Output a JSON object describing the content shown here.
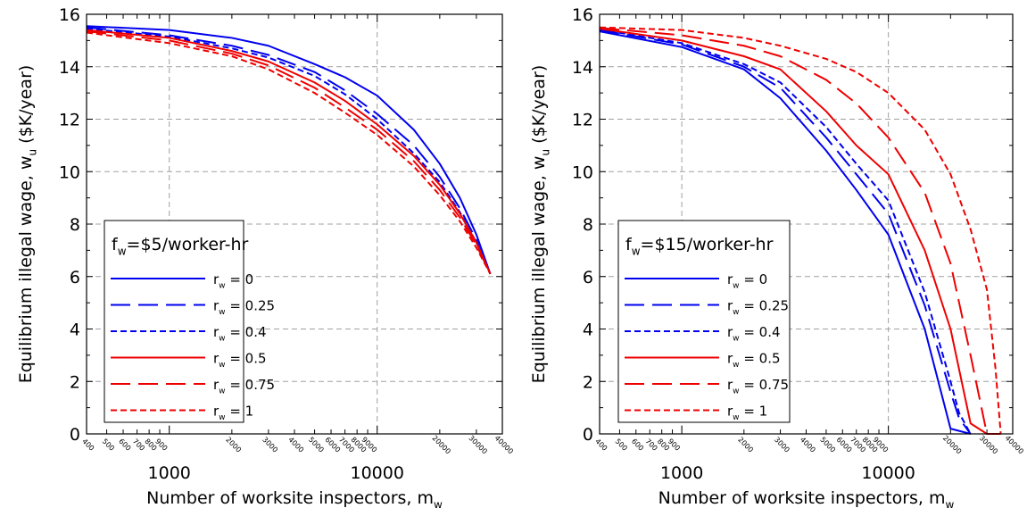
{
  "chart_data": [
    {
      "type": "line",
      "xscale": "log",
      "xlim": [
        400,
        40000
      ],
      "ylim": [
        0,
        16
      ],
      "ylabel": "Equilibrium illegal wage, w",
      "ylabel_sub": "u",
      "ylabel_unit": " ($K/year)",
      "xlabel": "Number of worksite inspectors, m",
      "xlabel_sub": "w",
      "yticks": [
        "0",
        "2",
        "4",
        "6",
        "8",
        "10",
        "12",
        "14",
        "16"
      ],
      "xticks_major": [
        "1000",
        "10000"
      ],
      "xticks_minor": [
        "400",
        "500",
        "600",
        "700",
        "800",
        "900",
        "2000",
        "3000",
        "4000",
        "5000",
        "6000",
        "7000",
        "8000",
        "9000",
        "20000",
        "30000",
        "40000"
      ],
      "grid": true,
      "legend_position": "lower-left",
      "legend_title": "f",
      "legend_title_sub": "w",
      "legend_title_rest": "=$5/worker-hr",
      "series": [
        {
          "name": "r",
          "name_sub": "w",
          "name_rest": " = 0",
          "color": "#0000ee",
          "dash": "solid",
          "x": [
            400,
            1000,
            2000,
            3000,
            5000,
            7000,
            10000,
            15000,
            20000,
            25000,
            30000,
            35000
          ],
          "y": [
            15.55,
            15.4,
            15.1,
            14.8,
            14.1,
            13.6,
            12.9,
            11.6,
            10.3,
            9.0,
            7.6,
            6.1
          ]
        },
        {
          "name": "r",
          "name_sub": "w",
          "name_rest": " = 0.25",
          "color": "#0000ee",
          "dash": "longdash",
          "x": [
            400,
            1000,
            2000,
            3000,
            5000,
            7000,
            10000,
            15000,
            20000,
            25000,
            30000,
            35000
          ],
          "y": [
            15.5,
            15.2,
            14.8,
            14.45,
            13.8,
            13.1,
            12.2,
            11.0,
            9.8,
            8.6,
            7.4,
            6.1
          ]
        },
        {
          "name": "r",
          "name_sub": "w",
          "name_rest": " = 0.4",
          "color": "#0000ee",
          "dash": "shortdash",
          "x": [
            400,
            1000,
            2000,
            3000,
            5000,
            7000,
            10000,
            15000,
            20000,
            25000,
            30000,
            35000
          ],
          "y": [
            15.45,
            15.15,
            14.7,
            14.35,
            13.65,
            12.95,
            12.0,
            10.7,
            9.6,
            8.45,
            7.3,
            6.1
          ]
        },
        {
          "name": "r",
          "name_sub": "w",
          "name_rest": " = 0.5",
          "color": "#ee0000",
          "dash": "solid",
          "x": [
            400,
            1000,
            2000,
            3000,
            5000,
            7000,
            10000,
            15000,
            20000,
            25000,
            30000,
            35000
          ],
          "y": [
            15.4,
            15.1,
            14.6,
            14.2,
            13.4,
            12.7,
            11.8,
            10.6,
            9.5,
            8.4,
            7.3,
            6.1
          ]
        },
        {
          "name": "r",
          "name_sub": "w",
          "name_rest": " = 0.75",
          "color": "#ee0000",
          "dash": "longdash",
          "x": [
            400,
            1000,
            2000,
            3000,
            5000,
            7000,
            10000,
            15000,
            20000,
            25000,
            30000,
            35000
          ],
          "y": [
            15.35,
            15.0,
            14.5,
            14.05,
            13.2,
            12.45,
            11.6,
            10.4,
            9.3,
            8.25,
            7.2,
            6.1
          ]
        },
        {
          "name": "r",
          "name_sub": "w",
          "name_rest": " = 1",
          "color": "#ee0000",
          "dash": "shortdash",
          "x": [
            400,
            1000,
            2000,
            3000,
            5000,
            7000,
            10000,
            15000,
            20000,
            25000,
            30000,
            35000
          ],
          "y": [
            15.3,
            14.9,
            14.4,
            13.9,
            13.0,
            12.25,
            11.4,
            10.2,
            9.1,
            8.1,
            7.1,
            6.1
          ]
        }
      ]
    },
    {
      "type": "line",
      "xscale": "log",
      "xlim": [
        400,
        40000
      ],
      "ylim": [
        0,
        16
      ],
      "ylabel": "Equilibrium illegal wage, w",
      "ylabel_sub": "u",
      "ylabel_unit": " ($K/year)",
      "xlabel": "Number of worksite inspectors, m",
      "xlabel_sub": "w",
      "yticks": [
        "0",
        "2",
        "4",
        "6",
        "8",
        "10",
        "12",
        "14",
        "16"
      ],
      "xticks_major": [
        "1000",
        "10000"
      ],
      "xticks_minor": [
        "400",
        "500",
        "600",
        "700",
        "800",
        "900",
        "2000",
        "3000",
        "4000",
        "5000",
        "6000",
        "7000",
        "8000",
        "9000",
        "20000",
        "30000",
        "40000"
      ],
      "grid": true,
      "legend_position": "lower-left",
      "legend_title": "f",
      "legend_title_sub": "w",
      "legend_title_rest": "=$15/worker-hr",
      "series": [
        {
          "name": "r",
          "name_sub": "w",
          "name_rest": " = 0",
          "color": "#0000ee",
          "dash": "solid",
          "x": [
            400,
            1000,
            2000,
            3000,
            5000,
            7000,
            10000,
            15000,
            20000,
            25000
          ],
          "y": [
            15.35,
            14.75,
            13.9,
            12.8,
            10.8,
            9.3,
            7.6,
            4.0,
            0.2,
            0.0
          ]
        },
        {
          "name": "r",
          "name_sub": "w",
          "name_rest": " = 0.25",
          "color": "#0000ee",
          "dash": "longdash",
          "x": [
            400,
            1000,
            2000,
            3000,
            5000,
            7000,
            10000,
            15000,
            20000,
            22000,
            25000
          ],
          "y": [
            15.4,
            14.85,
            14.0,
            13.2,
            11.3,
            9.9,
            8.4,
            4.9,
            1.6,
            0.6,
            0.0
          ]
        },
        {
          "name": "r",
          "name_sub": "w",
          "name_rest": " = 0.4",
          "color": "#0000ee",
          "dash": "shortdash",
          "x": [
            400,
            1000,
            2000,
            3000,
            5000,
            7000,
            10000,
            15000,
            20000,
            22000,
            25000
          ],
          "y": [
            15.42,
            14.9,
            14.1,
            13.4,
            11.7,
            10.3,
            8.9,
            5.4,
            2.0,
            0.8,
            0.0
          ]
        },
        {
          "name": "r",
          "name_sub": "w",
          "name_rest": " = 0.5",
          "color": "#ee0000",
          "dash": "solid",
          "x": [
            400,
            1000,
            2000,
            3000,
            5000,
            7000,
            10000,
            15000,
            20000,
            25000,
            30000,
            35000
          ],
          "y": [
            15.45,
            15.0,
            14.4,
            13.9,
            12.3,
            11.0,
            9.9,
            7.0,
            4.0,
            0.4,
            0.0,
            0.0
          ]
        },
        {
          "name": "r",
          "name_sub": "w",
          "name_rest": " = 0.75",
          "color": "#ee0000",
          "dash": "longdash",
          "x": [
            400,
            1000,
            2000,
            3000,
            5000,
            7000,
            10000,
            15000,
            20000,
            25000,
            30000
          ],
          "y": [
            15.48,
            15.2,
            14.8,
            14.4,
            13.5,
            12.6,
            11.3,
            9.2,
            6.5,
            3.0,
            0.0
          ]
        },
        {
          "name": "r",
          "name_sub": "w",
          "name_rest": " = 1",
          "color": "#ee0000",
          "dash": "shortdash",
          "x": [
            400,
            1000,
            2000,
            3000,
            5000,
            7000,
            10000,
            15000,
            20000,
            25000,
            30000,
            33000,
            35000
          ],
          "y": [
            15.5,
            15.4,
            15.1,
            14.8,
            14.3,
            13.8,
            13.0,
            11.6,
            9.9,
            7.8,
            5.5,
            2.5,
            0.0
          ]
        }
      ]
    }
  ]
}
